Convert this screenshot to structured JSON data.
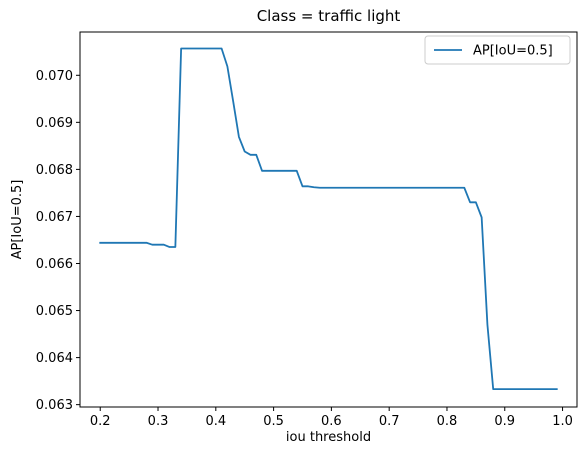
{
  "chart_data": {
    "type": "line",
    "title": "Class = traffic light",
    "xlabel": "iou threshold",
    "ylabel": "AP[IoU=0.5]",
    "xlim": [
      0.165,
      1.025
    ],
    "ylim": [
      0.06295,
      0.07092
    ],
    "xticks": [
      "0.2",
      "0.3",
      "0.4",
      "0.5",
      "0.6",
      "0.7",
      "0.8",
      "0.9",
      "1.0"
    ],
    "yticks": [
      "0.063",
      "0.064",
      "0.065",
      "0.066",
      "0.067",
      "0.068",
      "0.069",
      "0.070"
    ],
    "grid": false,
    "legend_position": "top-right",
    "series": [
      {
        "name": "AP[IoU=0.5]",
        "color": "#1f77b4",
        "x": [
          0.2,
          0.21,
          0.22,
          0.23,
          0.24,
          0.25,
          0.26,
          0.27,
          0.28,
          0.29,
          0.3,
          0.31,
          0.32,
          0.33,
          0.34,
          0.35,
          0.36,
          0.37,
          0.38,
          0.39,
          0.4,
          0.41,
          0.42,
          0.43,
          0.44,
          0.45,
          0.46,
          0.47,
          0.48,
          0.49,
          0.5,
          0.51,
          0.52,
          0.53,
          0.54,
          0.55,
          0.56,
          0.57,
          0.58,
          0.59,
          0.6,
          0.61,
          0.62,
          0.63,
          0.64,
          0.65,
          0.66,
          0.67,
          0.68,
          0.69,
          0.7,
          0.71,
          0.72,
          0.73,
          0.74,
          0.75,
          0.76,
          0.77,
          0.78,
          0.79,
          0.8,
          0.81,
          0.82,
          0.83,
          0.84,
          0.85,
          0.86,
          0.87,
          0.88,
          0.89,
          0.9,
          0.91,
          0.92,
          0.93,
          0.94,
          0.95,
          0.96,
          0.97,
          0.98,
          0.99
        ],
        "y": [
          0.06644,
          0.06644,
          0.06644,
          0.06644,
          0.06644,
          0.06644,
          0.06644,
          0.06644,
          0.06644,
          0.0664,
          0.0664,
          0.0664,
          0.06635,
          0.06635,
          0.07057,
          0.07057,
          0.07057,
          0.07057,
          0.07057,
          0.07057,
          0.07057,
          0.07057,
          0.07019,
          0.06945,
          0.06869,
          0.06838,
          0.06831,
          0.06831,
          0.06797,
          0.06797,
          0.06797,
          0.06797,
          0.06797,
          0.06797,
          0.06797,
          0.06764,
          0.06764,
          0.06762,
          0.06761,
          0.06761,
          0.06761,
          0.06761,
          0.06761,
          0.06761,
          0.06761,
          0.06761,
          0.06761,
          0.06761,
          0.06761,
          0.06761,
          0.06761,
          0.06761,
          0.06761,
          0.06761,
          0.06761,
          0.06761,
          0.06761,
          0.06761,
          0.06761,
          0.06761,
          0.06761,
          0.06761,
          0.06761,
          0.06761,
          0.0673,
          0.0673,
          0.06698,
          0.0647,
          0.06333,
          0.06333,
          0.06333,
          0.06333,
          0.06333,
          0.06333,
          0.06333,
          0.06333,
          0.06333,
          0.06333,
          0.06333,
          0.06333
        ]
      }
    ]
  }
}
